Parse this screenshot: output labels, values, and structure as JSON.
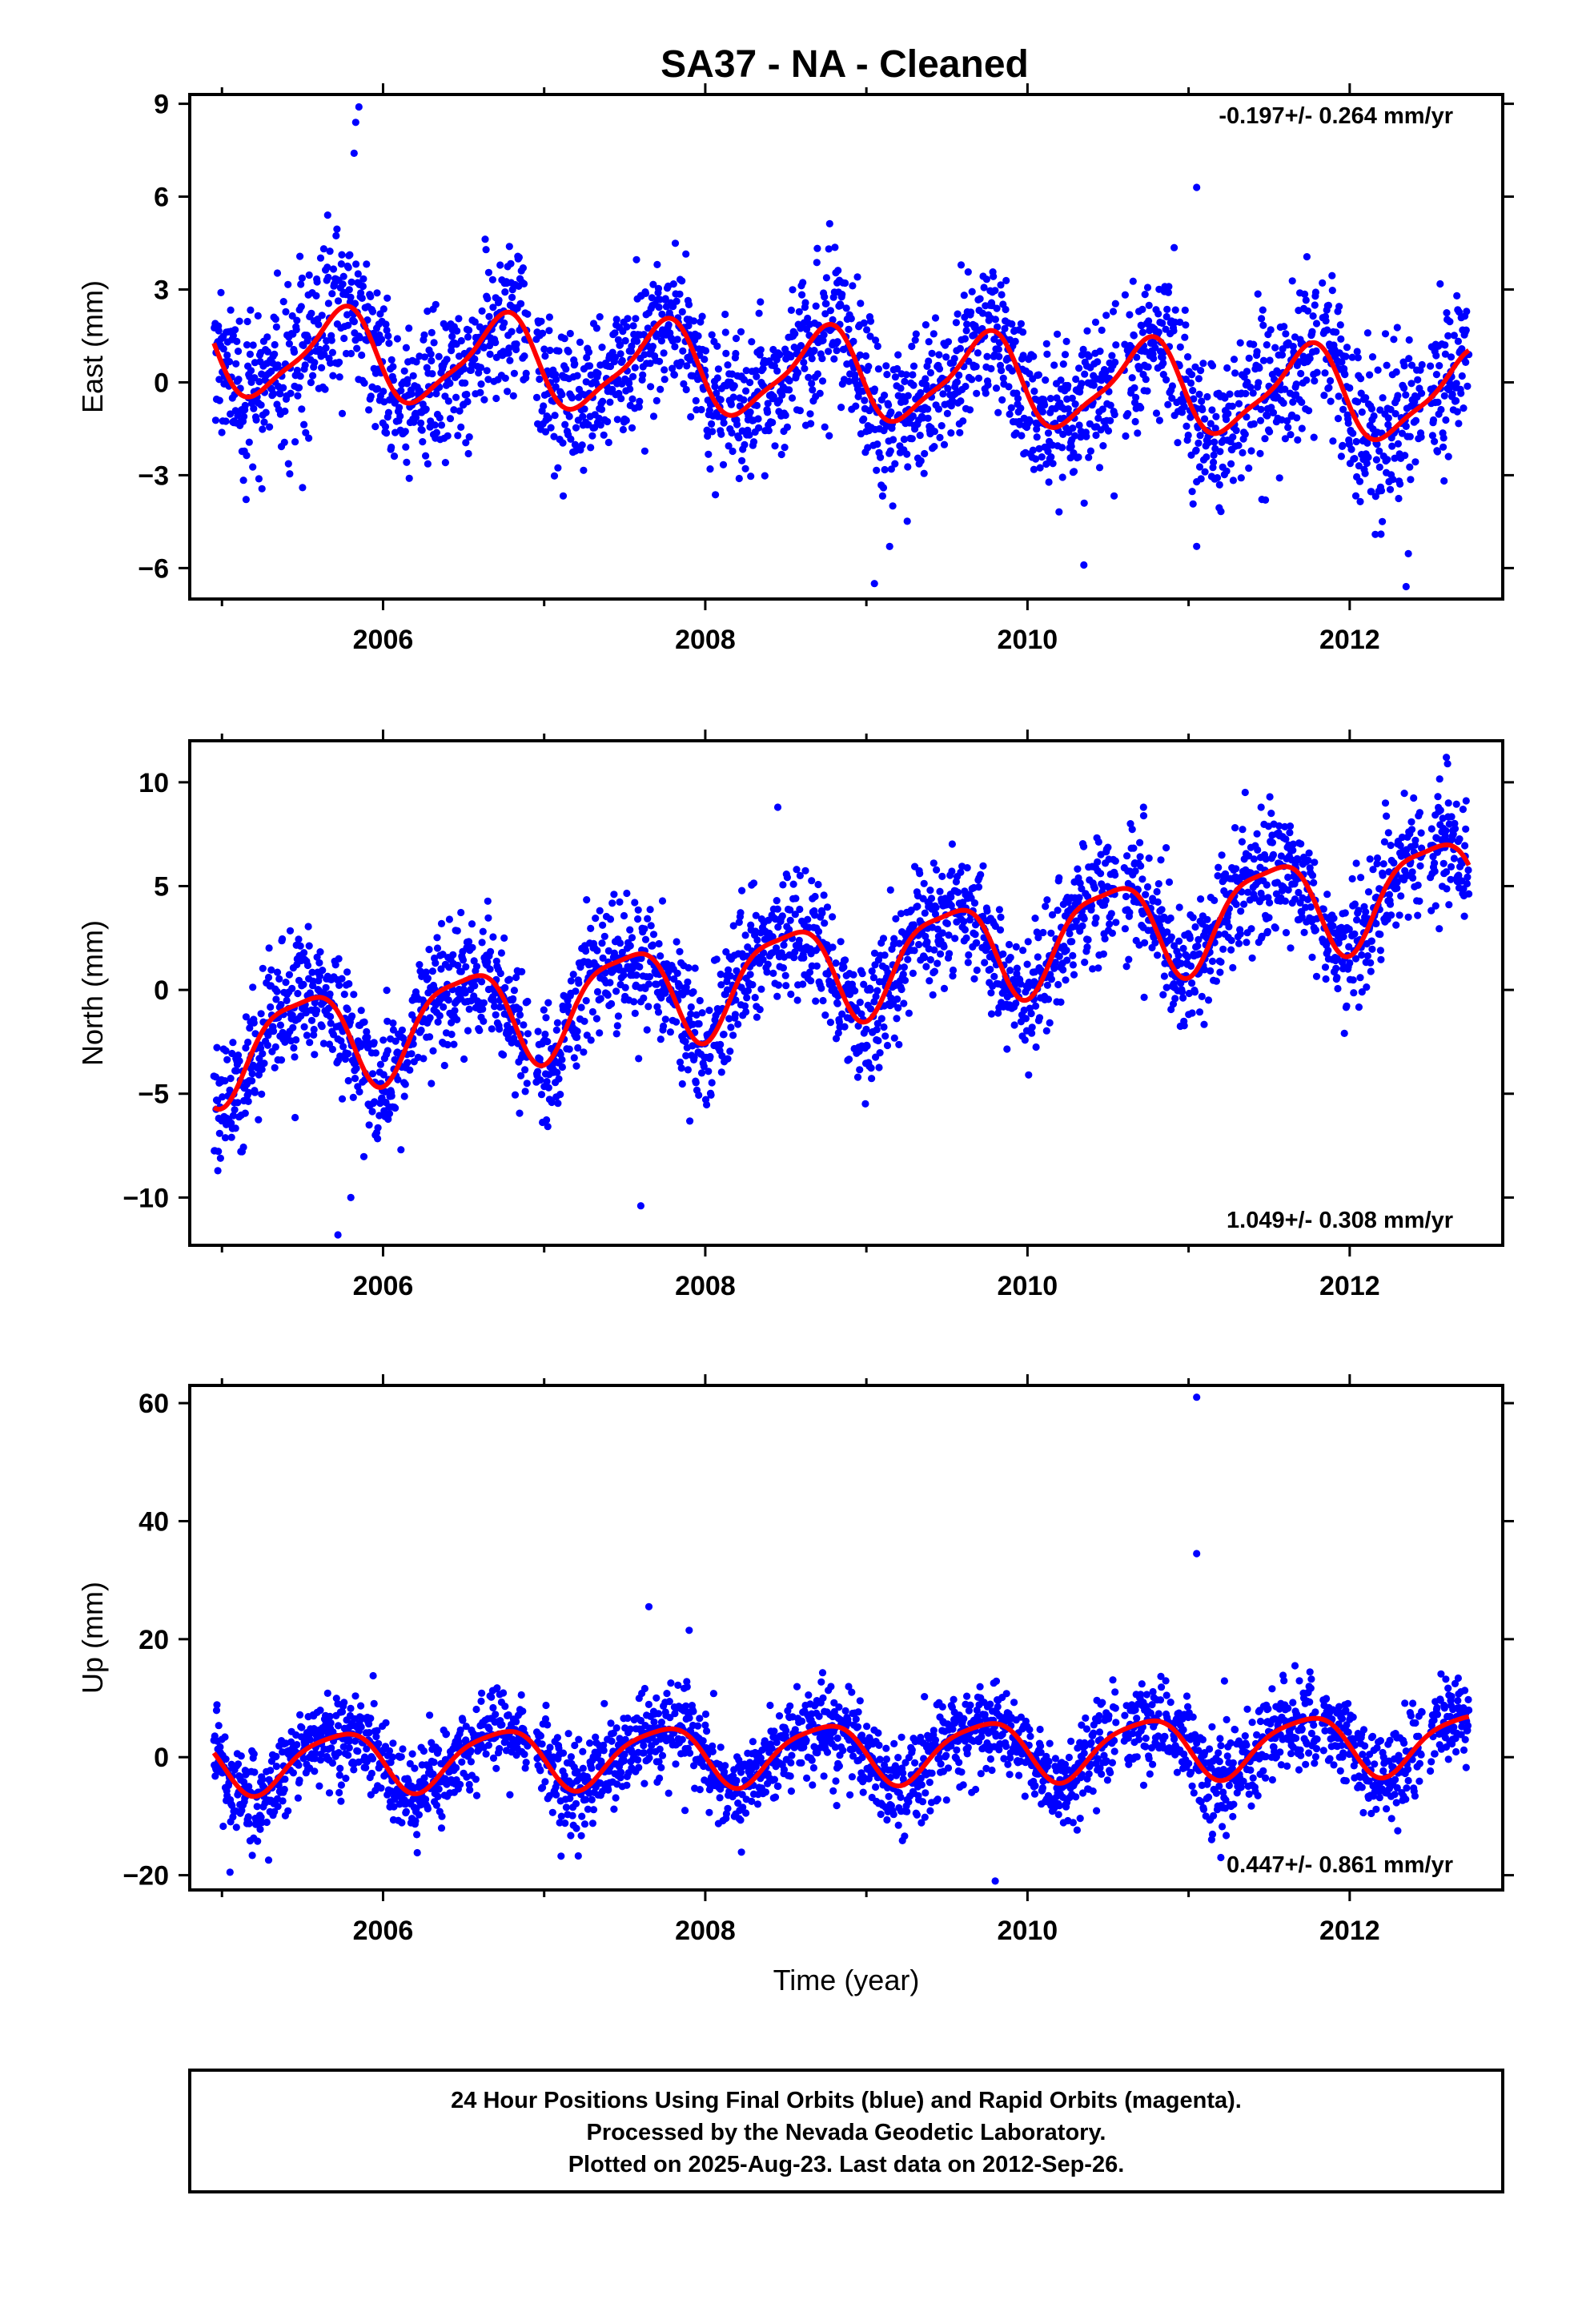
{
  "page_title": "SA37  - NA - Cleaned",
  "footer": {
    "line1": "24 Hour Positions Using Final Orbits (blue) and Rapid Orbits (magenta).",
    "line2": "Processed by the Nevada Geodetic Laboratory.",
    "line3": "Plotted on 2025-Aug-23. Last data on 2012-Sep-26."
  },
  "colors": {
    "data_points": "#0000ff",
    "model_curve": "#ff0000",
    "frame": "#000000"
  },
  "chart_data": [
    {
      "type": "scatter",
      "title": "SA37  - NA - Cleaned",
      "ylabel": "East (mm)",
      "xlabel": "",
      "xlim": [
        2004.8,
        2012.95
      ],
      "ylim": [
        -7,
        9.3
      ],
      "x_ticks": [
        2006,
        2008,
        2010,
        2012
      ],
      "y_ticks": [
        -6,
        -3,
        0,
        3,
        6,
        9
      ],
      "y_tick_labels": [
        "−6",
        "−3",
        "0",
        "3",
        "6",
        "9"
      ],
      "rate_annotation": "-0.197+/- 0.264 mm/yr",
      "rate_position": "top-right",
      "data_start": 2004.95,
      "data_end": 2012.74,
      "model": {
        "offset": 0.4,
        "trend_mm_per_yr": -0.197,
        "trend_ref": 2008,
        "annual_amplitude": 1.4,
        "annual_phase": 0.48,
        "semiannual_amplitude": 0.35,
        "semiannual_phase": 0.2
      },
      "scatter_sigma": 1.2,
      "series": [
        {
          "name": "24 Hour Positions (final orbits)",
          "color": "#0000ff",
          "style": "points"
        },
        {
          "name": "Model fit",
          "color": "#ff0000",
          "style": "line"
        }
      ],
      "outliers": [
        {
          "x": 2005.85,
          "y": 8.9
        },
        {
          "x": 2005.83,
          "y": 8.4
        },
        {
          "x": 2005.82,
          "y": 7.4
        },
        {
          "x": 2011.05,
          "y": 6.3
        },
        {
          "x": 2009.05,
          "y": -6.5
        },
        {
          "x": 2012.35,
          "y": -6.6
        },
        {
          "x": 2011.05,
          "y": -5.3
        },
        {
          "x": 2010.35,
          "y": -5.9
        },
        {
          "x": 2005.5,
          "y": -3.4
        }
      ]
    },
    {
      "type": "scatter",
      "title": "",
      "ylabel": "North (mm)",
      "xlabel": "",
      "xlim": [
        2004.8,
        2012.95
      ],
      "ylim": [
        -12.3,
        12
      ],
      "x_ticks": [
        2006,
        2008,
        2010,
        2012
      ],
      "y_ticks": [
        -10,
        -5,
        0,
        5,
        10
      ],
      "y_tick_labels": [
        "−10",
        "−5",
        "0",
        "5",
        "10"
      ],
      "rate_annotation": "1.049+/- 0.308 mm/yr",
      "rate_position": "bottom-right",
      "data_start": 2004.95,
      "data_end": 2012.74,
      "model": {
        "offset": 0.3,
        "trend_mm_per_yr": 1.049,
        "trend_ref": 2008,
        "annual_amplitude": 2.3,
        "annual_phase": 0.25,
        "semiannual_amplitude": 0.6,
        "semiannual_phase": 0.1
      },
      "scatter_sigma": 1.5,
      "series": [
        {
          "name": "24 Hour Positions (final orbits)",
          "color": "#0000ff",
          "style": "points"
        },
        {
          "name": "Model fit",
          "color": "#ff0000",
          "style": "line"
        }
      ],
      "outliers": [
        {
          "x": 2012.6,
          "y": 11.2
        },
        {
          "x": 2005.72,
          "y": -11.8
        },
        {
          "x": 2007.6,
          "y": -10.4
        },
        {
          "x": 2005.8,
          "y": -10.0
        },
        {
          "x": 2008.45,
          "y": 8.8
        },
        {
          "x": 2011.45,
          "y": 8.8
        },
        {
          "x": 2010.72,
          "y": 8.8
        }
      ]
    },
    {
      "type": "scatter",
      "title": "",
      "ylabel": "Up (mm)",
      "xlabel": "Time (year)",
      "xlim": [
        2004.8,
        2012.95
      ],
      "ylim": [
        -22.5,
        63
      ],
      "x_ticks": [
        2006,
        2008,
        2010,
        2012
      ],
      "y_ticks": [
        -20,
        0,
        20,
        40,
        60
      ],
      "y_tick_labels": [
        "−20",
        "0",
        "20",
        "40",
        "60"
      ],
      "rate_annotation": "0.447+/- 0.861 mm/yr",
      "rate_position": "bottom-right",
      "data_start": 2004.95,
      "data_end": 2012.74,
      "model": {
        "offset": 0.5,
        "trend_mm_per_yr": 0.447,
        "trend_ref": 2008,
        "annual_amplitude": 5.0,
        "annual_phase": 0.47,
        "semiannual_amplitude": 1.0,
        "semiannual_phase": 0.3
      },
      "scatter_sigma": 3.8,
      "series": [
        {
          "name": "24 Hour Positions (final orbits)",
          "color": "#0000ff",
          "style": "points"
        },
        {
          "name": "Model fit",
          "color": "#ff0000",
          "style": "line"
        }
      ],
      "outliers": [
        {
          "x": 2011.05,
          "y": 61.0
        },
        {
          "x": 2011.05,
          "y": 34.5
        },
        {
          "x": 2007.65,
          "y": 25.5
        },
        {
          "x": 2009.8,
          "y": -21.0
        },
        {
          "x": 2005.05,
          "y": -19.5
        },
        {
          "x": 2011.2,
          "y": -17.0
        },
        {
          "x": 2007.9,
          "y": 21.5
        }
      ]
    }
  ]
}
